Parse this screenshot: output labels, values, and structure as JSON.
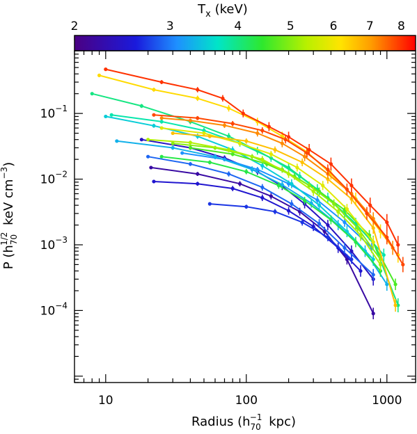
{
  "chart_data": {
    "type": "line",
    "xlabel": "Radius (h_70^-1 kpc)",
    "ylabel": "P (h_70^1/2 keV cm^-3)",
    "xscale": "log",
    "yscale": "log",
    "xlim": [
      6,
      1600
    ],
    "ylim": [
      8e-06,
      0.9
    ],
    "x_ticks": [
      "10",
      "100",
      "1000"
    ],
    "y_ticks": [
      "10^-1",
      "10^-2",
      "10^-3",
      "10^-4"
    ],
    "colorbar": {
      "title": "T_x (keV)",
      "range": [
        2,
        8.5
      ],
      "tick_values": [
        2,
        3,
        4,
        5,
        6,
        7,
        8
      ],
      "tick_labels": [
        "2",
        "3",
        "4",
        "5",
        "6",
        "7",
        "8"
      ]
    },
    "series": [
      {
        "T": 8.0,
        "x": [
          10,
          25,
          45,
          68,
          95,
          145,
          200,
          280,
          400,
          560,
          760,
          1000,
          1200
        ],
        "y": [
          0.47,
          0.3,
          0.23,
          0.17,
          0.1,
          0.063,
          0.044,
          0.028,
          0.017,
          0.008,
          0.004,
          0.0022,
          0.001
        ]
      },
      {
        "T": 7.8,
        "x": [
          22,
          45,
          80,
          130,
          190,
          270,
          380,
          520,
          720,
          1000,
          1300
        ],
        "y": [
          0.095,
          0.085,
          0.07,
          0.055,
          0.04,
          0.025,
          0.014,
          0.007,
          0.003,
          0.0013,
          0.0005
        ]
      },
      {
        "T": 7.2,
        "x": [
          25,
          40,
          70,
          120,
          180,
          260,
          380,
          560,
          800,
          1100
        ],
        "y": [
          0.085,
          0.078,
          0.066,
          0.05,
          0.035,
          0.022,
          0.012,
          0.006,
          0.0025,
          0.0009
        ]
      },
      {
        "T": 6.6,
        "x": [
          30,
          55,
          100,
          160,
          250,
          380,
          560,
          800,
          1150
        ],
        "y": [
          0.05,
          0.045,
          0.038,
          0.028,
          0.018,
          0.01,
          0.005,
          0.0018,
          0.00012
        ]
      },
      {
        "T": 6.3,
        "x": [
          9,
          22,
          45,
          75,
          120,
          180,
          270,
          400,
          600,
          900,
          1200
        ],
        "y": [
          0.38,
          0.23,
          0.17,
          0.12,
          0.075,
          0.045,
          0.026,
          0.012,
          0.005,
          0.0016,
          0.0007
        ]
      },
      {
        "T": 5.8,
        "x": [
          25,
          50,
          90,
          150,
          230,
          350,
          520,
          800
        ],
        "y": [
          0.06,
          0.05,
          0.035,
          0.024,
          0.015,
          0.008,
          0.0035,
          0.0011
        ]
      },
      {
        "T": 5.3,
        "x": [
          20,
          40,
          75,
          130,
          200,
          300,
          450,
          650,
          900
        ],
        "y": [
          0.04,
          0.036,
          0.028,
          0.02,
          0.012,
          0.0065,
          0.0032,
          0.0014,
          0.0005
        ]
      },
      {
        "T": 5.0,
        "x": [
          30,
          60,
          110,
          180,
          280,
          420,
          620,
          900
        ],
        "y": [
          0.035,
          0.03,
          0.022,
          0.014,
          0.008,
          0.0042,
          0.0018,
          0.0006
        ]
      },
      {
        "T": 4.6,
        "x": [
          40,
          80,
          140,
          220,
          330,
          500,
          750,
          1150
        ],
        "y": [
          0.03,
          0.024,
          0.017,
          0.011,
          0.0065,
          0.0034,
          0.0014,
          0.00025
        ]
      },
      {
        "T": 4.3,
        "x": [
          25,
          55,
          100,
          170,
          260,
          400,
          600,
          900
        ],
        "y": [
          0.022,
          0.018,
          0.013,
          0.008,
          0.0047,
          0.0024,
          0.0011,
          0.0004
        ]
      },
      {
        "T": 4.0,
        "x": [
          8,
          18,
          40,
          75,
          120,
          200,
          320,
          500,
          800,
          1200
        ],
        "y": [
          0.2,
          0.13,
          0.075,
          0.045,
          0.027,
          0.015,
          0.007,
          0.003,
          0.0011,
          0.00012
        ]
      },
      {
        "T": 3.8,
        "x": [
          11,
          25,
          50,
          90,
          150,
          240,
          380,
          600,
          950
        ],
        "y": [
          0.095,
          0.075,
          0.055,
          0.035,
          0.021,
          0.011,
          0.0052,
          0.0021,
          0.0007
        ]
      },
      {
        "T": 3.5,
        "x": [
          10,
          22,
          45,
          80,
          130,
          210,
          330,
          520,
          800
        ],
        "y": [
          0.09,
          0.065,
          0.045,
          0.028,
          0.016,
          0.0085,
          0.004,
          0.0016,
          0.0006
        ]
      },
      {
        "T": 3.3,
        "x": [
          12,
          30,
          60,
          110,
          180,
          290,
          450,
          700,
          1000
        ],
        "y": [
          0.038,
          0.03,
          0.022,
          0.014,
          0.0082,
          0.0043,
          0.002,
          0.0008,
          0.00025
        ]
      },
      {
        "T": 3.1,
        "x": [
          35,
          70,
          120,
          200,
          320,
          500,
          780
        ],
        "y": [
          0.025,
          0.02,
          0.014,
          0.0085,
          0.0048,
          0.0022,
          0.0009
        ]
      },
      {
        "T": 2.9,
        "x": [
          20,
          40,
          75,
          130,
          210,
          330,
          500,
          800
        ],
        "y": [
          0.022,
          0.017,
          0.012,
          0.0075,
          0.0042,
          0.0021,
          0.0009,
          0.00035
        ]
      },
      {
        "T": 2.7,
        "x": [
          55,
          100,
          160,
          250,
          380,
          560
        ],
        "y": [
          0.0042,
          0.0038,
          0.0032,
          0.0022,
          0.0013,
          0.0006
        ]
      },
      {
        "T": 2.5,
        "x": [
          22,
          45,
          80,
          130,
          200,
          300,
          450,
          650
        ],
        "y": [
          0.0092,
          0.0085,
          0.0072,
          0.0052,
          0.0033,
          0.0019,
          0.0009,
          0.0004
        ]
      },
      {
        "T": 2.4,
        "x": [
          18,
          40,
          70,
          120,
          180,
          260,
          380,
          560,
          800
        ],
        "y": [
          0.04,
          0.03,
          0.021,
          0.013,
          0.0078,
          0.0042,
          0.002,
          0.0008,
          0.0003
        ]
      },
      {
        "T": 2.2,
        "x": [
          21,
          45,
          90,
          150,
          240,
          360,
          520,
          800
        ],
        "y": [
          0.015,
          0.012,
          0.0085,
          0.0055,
          0.0032,
          0.0016,
          0.0006,
          9e-05
        ]
      }
    ]
  }
}
